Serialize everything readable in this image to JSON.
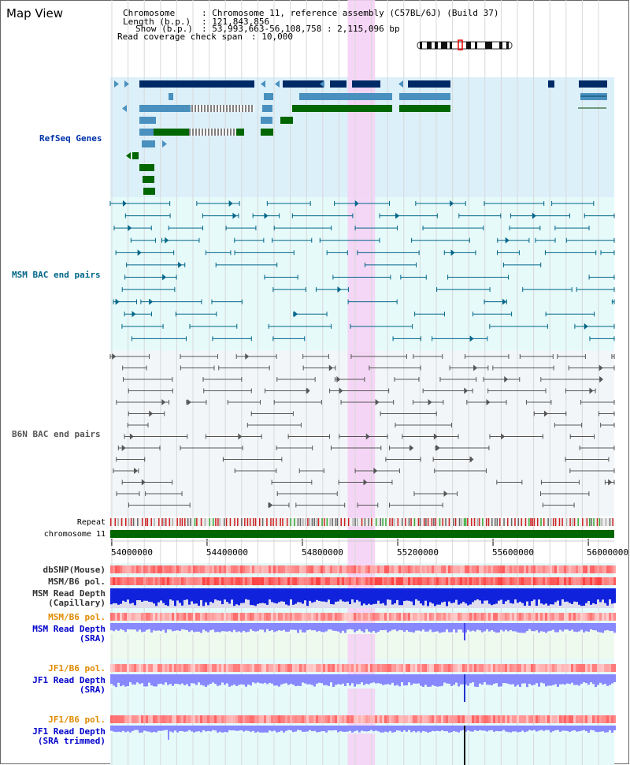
{
  "page": {
    "title": "Map View"
  },
  "info": {
    "chromosome_key": "Chromosome",
    "chromosome_value": ": Chromosome 11, reference assembly (C57BL/6J) (Build 37)",
    "length_key": "Length (b.p.)",
    "length_value": ": 121,843,856",
    "show_key": "Show (b.p.)",
    "show_value": ": 53,993,663-56,108,758 : 2,115,096 bp",
    "coverage_key": "Read coverage check span",
    "coverage_value": ": 10,000"
  },
  "tracks": {
    "refseq": {
      "label": "RefSeq Genes",
      "color": "#0033aa",
      "bg": "#dcf0fa"
    },
    "msm_bac": {
      "label": "MSM BAC end pairs",
      "color": "#006688",
      "bg": "#e6fafa"
    },
    "b6n_bac": {
      "label": "B6N BAC end pairs",
      "color": "#444444",
      "bg": "#f3f6f9"
    },
    "repeat": {
      "label": "Repeat"
    },
    "chromosome": {
      "label": "chromosome 11",
      "color": "#006600"
    },
    "dbsnp": {
      "label": "dbSNP(Mouse)",
      "color": "#333333"
    },
    "msm_b6_pol_1": {
      "label": "MSM/B6 pol.",
      "color": "#333333"
    },
    "msm_read_depth_cap": {
      "label": "MSM Read Depth",
      "label2": "(Capillary)",
      "color": "#333333"
    },
    "msm_b6_pol_2": {
      "label": "MSM/B6 pol.",
      "color": "#e08a00"
    },
    "msm_read_depth_sra": {
      "label": "MSM Read Depth",
      "label2": "(SRA)",
      "color": "#0000cc"
    },
    "jf1_b6_pol_1": {
      "label": "JF1/B6 pol.",
      "color": "#e08a00"
    },
    "jf1_read_depth_sra": {
      "label": "JF1 Read Depth",
      "label2": "(SRA)",
      "color": "#0000cc"
    },
    "jf1_b6_pol_2": {
      "label": "JF1/B6 pol.",
      "color": "#e08a00"
    },
    "jf1_read_depth_trim": {
      "label": "JF1 Read Depth",
      "label2": "(SRA trimmed)",
      "color": "#0000cc"
    }
  },
  "axis": {
    "range_bp": [
      53993663,
      56108758
    ],
    "ticks": [
      {
        "label": "54000000",
        "value": 54000000
      },
      {
        "label": "54400000",
        "value": 54400000
      },
      {
        "label": "54800000",
        "value": 54800000
      },
      {
        "label": "55200000",
        "value": 55200000
      },
      {
        "label": "55600000",
        "value": 55600000
      },
      {
        "label": "56000000",
        "value": 56000000
      }
    ]
  },
  "highlight": {
    "start_bp": 54990000,
    "end_bp": 55105000,
    "color": "#f5d2f5"
  },
  "colors": {
    "refseq_dark": "#002a66",
    "refseq_mid": "#4a90bf",
    "refseq_green": "#006600",
    "snp_red": "#ff6666",
    "depth_blue": "#1122dd",
    "depth_light": "#8888ff"
  }
}
